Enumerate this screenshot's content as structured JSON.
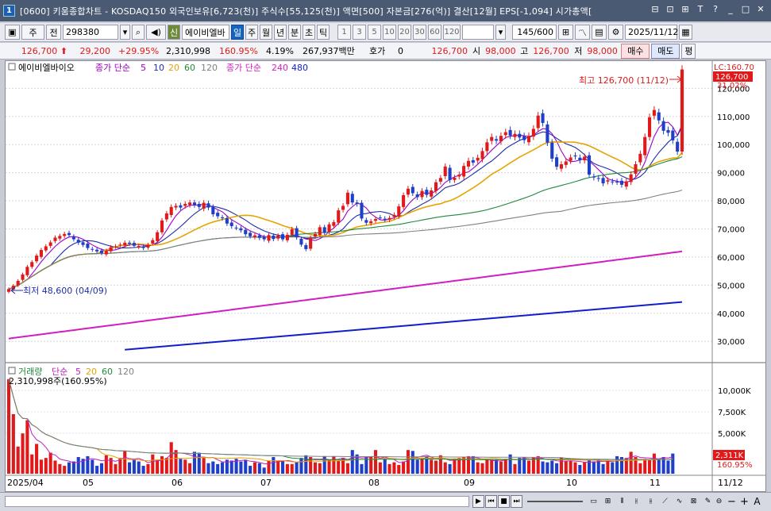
{
  "window": {
    "title": "[0600] 키움종합차트 - KOSDAQ150 외국인보유[6,723(천)] 주식수[55,125(천)] 액면[500] 자본금[276(억)] 결산[12월] EPS[-1,094] 시가총액[",
    "buttons": [
      "⊟",
      "⊡",
      "⊞",
      "T",
      "?",
      "_",
      "□",
      "✕"
    ]
  },
  "toolbar": {
    "period": "주",
    "all_label": "전",
    "code": "298380",
    "credit_label": "신",
    "stock_name": "에이비엘바",
    "tabs": [
      "일",
      "주",
      "월",
      "년",
      "분",
      "초",
      "틱"
    ],
    "intervals": [
      "1",
      "3",
      "5",
      "10",
      "20",
      "30",
      "60",
      "120"
    ],
    "count": "145",
    "count_total": "/600",
    "date": "2025/11/12"
  },
  "quote": {
    "price": "126,700",
    "change": "29,200",
    "change_pct": "+29.95%",
    "volume": "2,310,998",
    "vol_ratio": "160.95%",
    "turnover": "4.19%",
    "amount": "267,937백만",
    "hoga_label": "호가",
    "hoga_value": "0",
    "hoga_price": "126,700",
    "open_label": "시",
    "open": "98,000",
    "high_label": "고",
    "high": "126,700",
    "low_label": "저",
    "low": "98,000",
    "buy_label": "매수",
    "sell_label": "매도",
    "avg_label": "평"
  },
  "legend": {
    "stock": "에이비엘바이오",
    "ma_label": "종가 단순",
    "ma_periods": [
      "5",
      "10",
      "20",
      "60",
      "120"
    ],
    "ma_colors": [
      "#a000c8",
      "#1f2ea8",
      "#e5a400",
      "#1f8a3a",
      "#808080"
    ],
    "ma2_label": "종가 단순",
    "ma2_periods": [
      "240",
      "480"
    ],
    "ma2_colors": [
      "#d020c0",
      "#1020c8"
    ]
  },
  "annotations": {
    "high": "최고 126,700 (11/12)",
    "low": "최저 48,600 (04/09)",
    "lc": "LC:160.70",
    "last_price": "126,700",
    "last_pct": "31.02%"
  },
  "volume_panel": {
    "label": "거래량",
    "ma_label": "단순",
    "ma_periods": [
      "5",
      "20",
      "60",
      "120"
    ],
    "ma_colors": [
      "#c020c0",
      "#e5a400",
      "#1f8a3a",
      "#808080"
    ],
    "value": "2,310,998주(160.95%)",
    "last_value": "2,311K",
    "last_pct": "160.95%",
    "y_ticks": [
      "10,000K",
      "7,500K",
      "5,000K"
    ]
  },
  "x_labels": [
    "2025/04",
    "05",
    "06",
    "07",
    "08",
    "09",
    "10",
    "11"
  ],
  "x_last": "11/12",
  "chart_data": {
    "type": "candlestick",
    "y_ticks": [
      120000,
      110000,
      100000,
      90000,
      80000,
      70000,
      60000,
      50000,
      40000,
      30000
    ],
    "ylim": [
      23000,
      128000
    ],
    "high": 126700,
    "low": 48600,
    "close_series": [
      48600,
      49800,
      51500,
      53800,
      56500,
      58200,
      60500,
      62500,
      63800,
      65200,
      66900,
      67500,
      68200,
      67800,
      66300,
      65100,
      64300,
      63200,
      62600,
      62000,
      61400,
      62200,
      63500,
      63800,
      64400,
      65100,
      64700,
      64000,
      63900,
      63200,
      64300,
      66000,
      68800,
      73000,
      75500,
      77800,
      78200,
      77600,
      78900,
      79400,
      78500,
      77800,
      79300,
      77600,
      75200,
      74500,
      73800,
      71900,
      71000,
      70400,
      69500,
      68100,
      67400,
      67700,
      66800,
      66300,
      67800,
      66400,
      67600,
      66300,
      67900,
      69900,
      67000,
      64400,
      62800,
      66800,
      68200,
      70600,
      68600,
      71600,
      72400,
      76600,
      78200,
      82900,
      79400,
      78900,
      73700,
      72200,
      72700,
      73500,
      74000,
      73300,
      73900,
      75000,
      78000,
      82000,
      84300,
      82700,
      81300,
      83500,
      82100,
      83700,
      86600,
      88100,
      92200,
      87400,
      88200,
      89300,
      92400,
      94200,
      93600,
      95300,
      97700,
      100800,
      102700,
      101400,
      103100,
      104400,
      103200,
      103800,
      102500,
      101600,
      103100,
      105600,
      110300,
      107700,
      100700,
      95000,
      92100,
      93000,
      94000,
      95400,
      95800,
      94400,
      95700,
      89300,
      88300,
      87900,
      86200,
      87300,
      86800,
      86700,
      85700,
      86900,
      89400,
      93000,
      96700,
      102700,
      109700,
      112300,
      108600,
      104900,
      104200,
      101500,
      97500,
      126700
    ],
    "volume_series": [
      10.8,
      6.8,
      3.1,
      4.6,
      6.1,
      2.2,
      3.4,
      1.6,
      1.8,
      2.4,
      1.5,
      1.1,
      0.9,
      1.3,
      1.4,
      1.9,
      1.7,
      2.0,
      1.6,
      0.9,
      1.2,
      2.1,
      1.8,
      1.1,
      1.8,
      2.6,
      1.3,
      1.6,
      1.4,
      0.9,
      1.1,
      2.2,
      1.6,
      2.0,
      1.8,
      3.6,
      2.7,
      1.7,
      1.6,
      1.2,
      2.5,
      2.4,
      1.8,
      1.2,
      1.4,
      1.1,
      1.3,
      1.6,
      1.5,
      1.7,
      1.4,
      1.6,
      0.9,
      1.3,
      1.2,
      0.7,
      1.5,
      1.9,
      1.5,
      1.5,
      1.1,
      1.1,
      1.3,
      1.8,
      2.1,
      1.9,
      1.3,
      1.2,
      2.0,
      1.6,
      2.0,
      1.5,
      1.8,
      1.2,
      2.7,
      2.2,
      1.1,
      1.9,
      1.9,
      2.7,
      1.3,
      1.7,
      1.1,
      1.3,
      1.0,
      1.4,
      2.7,
      2.6,
      1.6,
      1.7,
      2.0,
      1.6,
      1.5,
      2.1,
      1.3,
      1.1,
      1.7,
      1.8,
      1.9,
      2.0,
      2.0,
      1.3,
      1.2,
      1.6,
      1.6,
      1.6,
      1.4,
      1.7,
      2.2,
      1.1,
      1.8,
      1.9,
      1.5,
      1.9,
      2.0,
      1.4,
      1.3,
      1.5,
      1.2,
      1.8,
      1.4,
      1.5,
      1.3,
      1.0,
      1.3,
      1.6,
      1.4,
      1.6,
      1.1,
      1.5,
      1.3,
      2.0,
      1.9,
      1.8,
      2.5,
      1.9,
      1.2,
      1.7,
      1.6,
      2.3,
      1.7,
      1.9,
      1.5,
      2.3
    ],
    "volume_unit": "M",
    "volume_ylim": [
      0,
      12.5
    ]
  }
}
